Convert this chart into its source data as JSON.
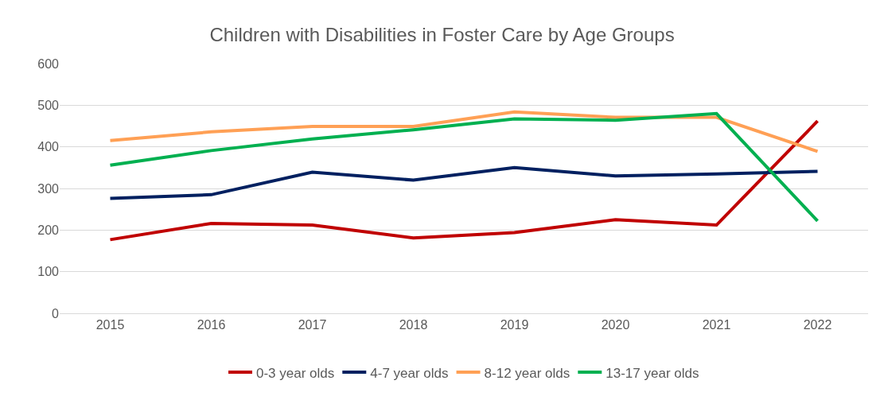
{
  "chart_data": {
    "type": "line",
    "title": "Children with Disabilities in Foster Care by Age Groups",
    "categories": [
      "2015",
      "2016",
      "2017",
      "2018",
      "2019",
      "2020",
      "2021",
      "2022"
    ],
    "series": [
      {
        "name": "0-3 year olds",
        "color": "#c00000",
        "values": [
          177,
          216,
          212,
          181,
          194,
          225,
          212,
          462
        ]
      },
      {
        "name": "4-7 year olds",
        "color": "#002060",
        "values": [
          276,
          285,
          339,
          320,
          350,
          330,
          335,
          341
        ]
      },
      {
        "name": "8-12 year olds",
        "color": "#ffa055",
        "values": [
          415,
          436,
          449,
          449,
          484,
          471,
          471,
          389
        ]
      },
      {
        "name": "13-17 year olds",
        "color": "#00b050",
        "values": [
          356,
          391,
          419,
          441,
          467,
          464,
          480,
          222
        ]
      }
    ],
    "ylim": [
      0,
      600
    ],
    "yticks": [
      0,
      100,
      200,
      300,
      400,
      500,
      600
    ],
    "grid": "y",
    "legend": "bottom",
    "marker": "none",
    "line_style": "solid"
  }
}
